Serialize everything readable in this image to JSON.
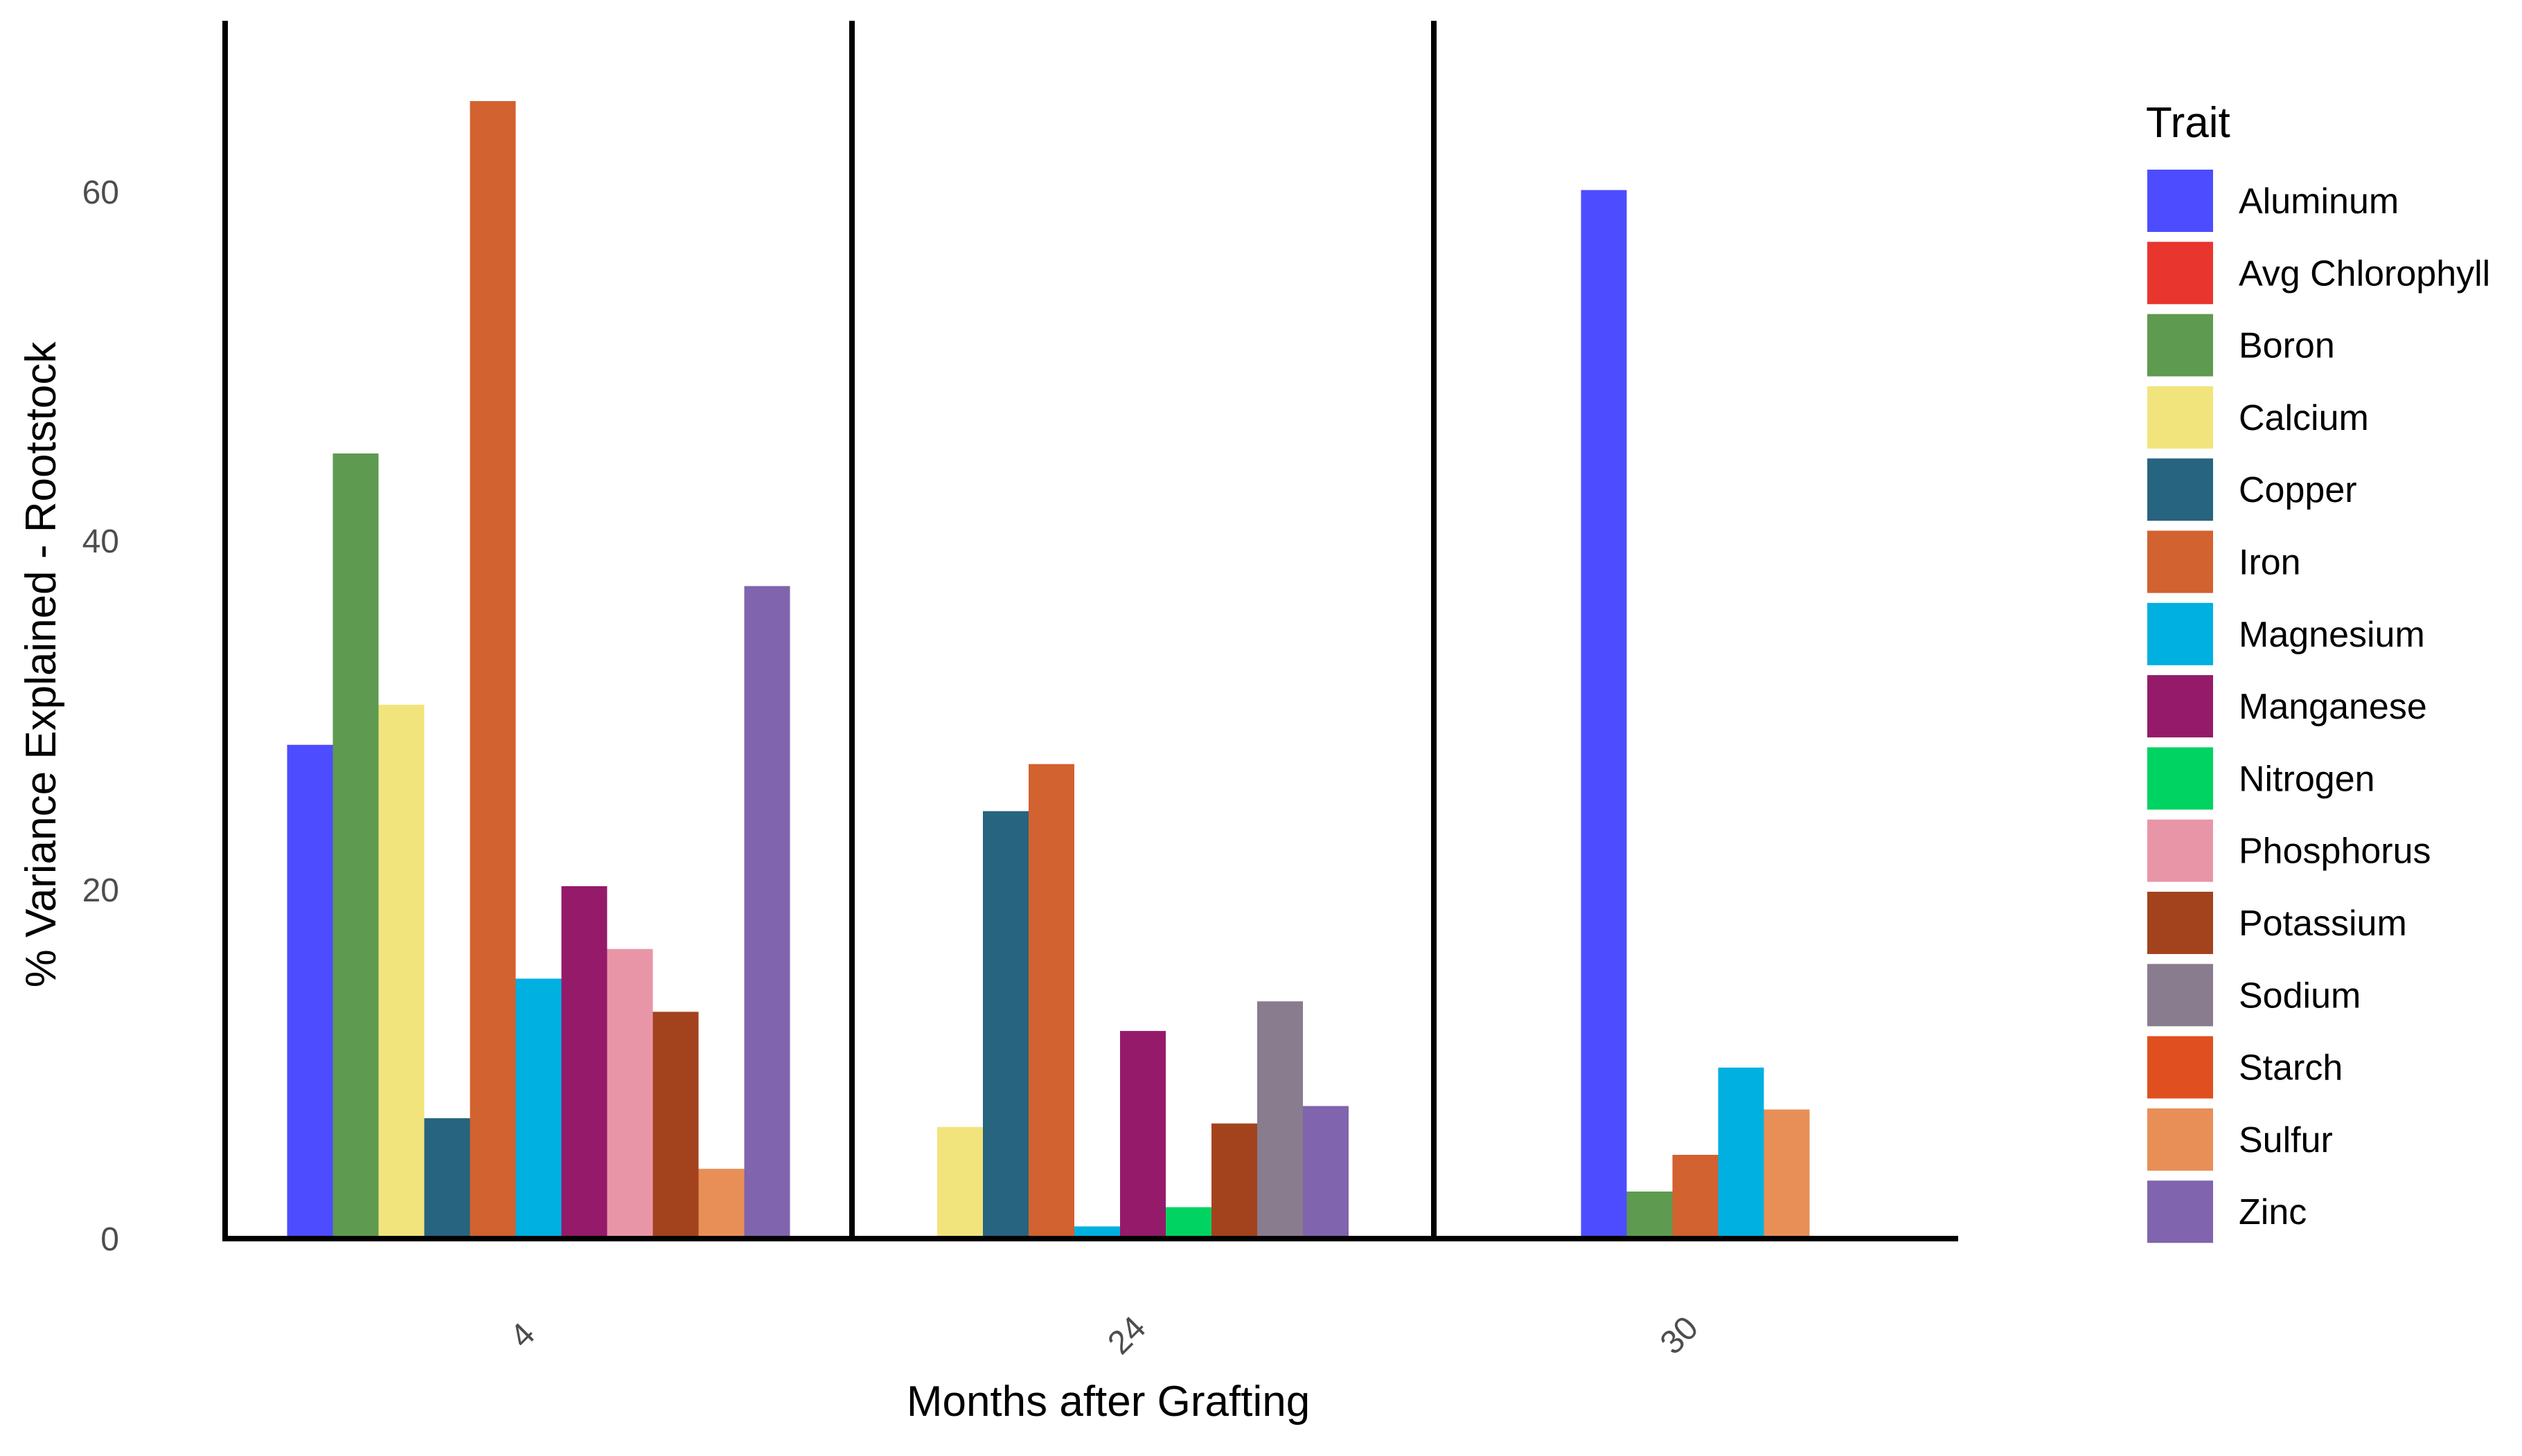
{
  "chart_data": {
    "type": "bar",
    "xlabel": "Months after Grafting",
    "ylabel": "% Variance Explained - Rootstock",
    "categories": [
      "4",
      "24",
      "30"
    ],
    "yticks": [
      0,
      20,
      40,
      60
    ],
    "ylim": [
      0,
      70
    ],
    "grid": false,
    "legend": {
      "title": "Trait",
      "placement": "right"
    },
    "series": [
      {
        "name": "Aluminum",
        "color": "#4d4dff",
        "values": [
          28.3,
          0,
          60.1
        ]
      },
      {
        "name": "Avg_Chlorophyll",
        "color": "#e8352e",
        "values": [
          0,
          0,
          0
        ]
      },
      {
        "name": "Boron",
        "color": "#5e9a4f",
        "values": [
          45.0,
          0,
          2.7
        ]
      },
      {
        "name": "Calcium",
        "color": "#f2e47c",
        "values": [
          30.6,
          6.4,
          0
        ]
      },
      {
        "name": "Copper",
        "color": "#27647f",
        "values": [
          6.9,
          24.5,
          0
        ]
      },
      {
        "name": "Iron",
        "color": "#d2622f",
        "values": [
          65.2,
          27.2,
          4.8
        ]
      },
      {
        "name": "Magnesium",
        "color": "#00b0e0",
        "values": [
          14.9,
          0.7,
          9.8
        ]
      },
      {
        "name": "Manganese",
        "color": "#951a6a",
        "values": [
          20.2,
          11.9,
          0
        ]
      },
      {
        "name": "Nitrogen",
        "color": "#00d362",
        "values": [
          0,
          1.8,
          0
        ]
      },
      {
        "name": "Phosphorus",
        "color": "#e995a8",
        "values": [
          16.6,
          0,
          0
        ]
      },
      {
        "name": "Potassium",
        "color": "#a3431d",
        "values": [
          13.0,
          6.6,
          0
        ]
      },
      {
        "name": "Sodium",
        "color": "#887c8e",
        "values": [
          0,
          13.6,
          0
        ]
      },
      {
        "name": "Starch",
        "color": "#e04f1f",
        "values": [
          0,
          0,
          0
        ]
      },
      {
        "name": "Sulfur",
        "color": "#e88f57",
        "values": [
          4.0,
          0,
          7.4
        ]
      },
      {
        "name": "Zinc",
        "color": "#8064ad",
        "values": [
          37.4,
          7.6,
          0
        ]
      }
    ]
  }
}
